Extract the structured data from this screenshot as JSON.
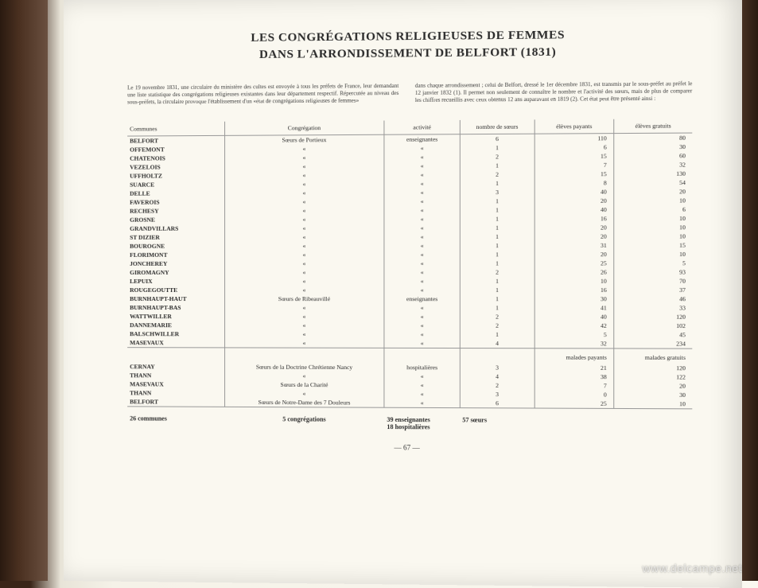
{
  "title": {
    "line1": "LES CONGRÉGATIONS RELIGIEUSES DE FEMMES",
    "line2": "DANS L'ARRONDISSEMENT DE BELFORT (1831)"
  },
  "intro": {
    "col1": "Le 19 novembre 1831, une circulaire du ministère des cultes est envoyée à tous les préfets de France, leur demandant une liste statistique des congrégations religieuses existantes dans leur département respectif. Répercutée au niveau des sous-préfets, la circulaire provoque l'établissement d'un «état de congrégations religieuses de femmes»",
    "col2": "dans chaque arrondissement ; celui de Belfort, dressé le 1er décembre 1831, est transmis par le sous-préfet au préfet le 12 janvier 1832 (1). Il permet non seulement de connaître le nombre et l'activité des sœurs, mais de plus de comparer les chiffres recueillis avec ceux obtenus 12 ans auparavant en 1819 (2). Cet état peut être présenté ainsi :"
  },
  "table": {
    "headers": {
      "communes": "Communes",
      "congregation": "Congrégation",
      "activite": "activité",
      "soeurs": "nombre de sœurs",
      "payants": "élèves payants",
      "gratuits": "élèves gratuits"
    },
    "section1": [
      {
        "commune": "BELFORT",
        "congregation": "Sœurs de Portieux",
        "activite": "enseignantes",
        "soeurs": "6",
        "payants": "110",
        "gratuits": "80"
      },
      {
        "commune": "OFFEMONT",
        "congregation": "«",
        "activite": "«",
        "soeurs": "1",
        "payants": "6",
        "gratuits": "30"
      },
      {
        "commune": "CHATENOIS",
        "congregation": "«",
        "activite": "«",
        "soeurs": "2",
        "payants": "15",
        "gratuits": "60"
      },
      {
        "commune": "VEZELOIS",
        "congregation": "«",
        "activite": "«",
        "soeurs": "1",
        "payants": "7",
        "gratuits": "32"
      },
      {
        "commune": "UFFHOLTZ",
        "congregation": "«",
        "activite": "«",
        "soeurs": "2",
        "payants": "15",
        "gratuits": "130"
      },
      {
        "commune": "SUARCE",
        "congregation": "«",
        "activite": "«",
        "soeurs": "1",
        "payants": "8",
        "gratuits": "54"
      },
      {
        "commune": "DELLE",
        "congregation": "«",
        "activite": "«",
        "soeurs": "3",
        "payants": "40",
        "gratuits": "20"
      },
      {
        "commune": "FAVEROIS",
        "congregation": "«",
        "activite": "«",
        "soeurs": "1",
        "payants": "20",
        "gratuits": "10"
      },
      {
        "commune": "RECHESY",
        "congregation": "«",
        "activite": "«",
        "soeurs": "1",
        "payants": "40",
        "gratuits": "6"
      },
      {
        "commune": "GROSNE",
        "congregation": "«",
        "activite": "«",
        "soeurs": "1",
        "payants": "16",
        "gratuits": "10"
      },
      {
        "commune": "GRANDVILLARS",
        "congregation": "«",
        "activite": "«",
        "soeurs": "1",
        "payants": "20",
        "gratuits": "10"
      },
      {
        "commune": "ST DIZIER",
        "congregation": "«",
        "activite": "«",
        "soeurs": "1",
        "payants": "20",
        "gratuits": "10"
      },
      {
        "commune": "BOUROGNE",
        "congregation": "«",
        "activite": "«",
        "soeurs": "1",
        "payants": "31",
        "gratuits": "15"
      },
      {
        "commune": "FLORIMONT",
        "congregation": "«",
        "activite": "«",
        "soeurs": "1",
        "payants": "20",
        "gratuits": "10"
      },
      {
        "commune": "JONCHEREY",
        "congregation": "«",
        "activite": "«",
        "soeurs": "1",
        "payants": "25",
        "gratuits": "5"
      },
      {
        "commune": "GIROMAGNY",
        "congregation": "«",
        "activite": "«",
        "soeurs": "2",
        "payants": "26",
        "gratuits": "93"
      },
      {
        "commune": "LEPUIX",
        "congregation": "«",
        "activite": "«",
        "soeurs": "1",
        "payants": "10",
        "gratuits": "70"
      },
      {
        "commune": "ROUGEGOUTTE",
        "congregation": "«",
        "activite": "«",
        "soeurs": "1",
        "payants": "16",
        "gratuits": "37"
      },
      {
        "commune": "BURNHAUPT-HAUT",
        "congregation": "Sœurs de Ribeauvillé",
        "activite": "enseignantes",
        "soeurs": "1",
        "payants": "30",
        "gratuits": "46"
      },
      {
        "commune": "BURNHAUPT-BAS",
        "congregation": "«",
        "activite": "«",
        "soeurs": "1",
        "payants": "41",
        "gratuits": "33"
      },
      {
        "commune": "WATTWILLER",
        "congregation": "«",
        "activite": "«",
        "soeurs": "2",
        "payants": "40",
        "gratuits": "120"
      },
      {
        "commune": "DANNEMARIE",
        "congregation": "«",
        "activite": "«",
        "soeurs": "2",
        "payants": "42",
        "gratuits": "102"
      },
      {
        "commune": "BALSCHWILLER",
        "congregation": "«",
        "activite": "«",
        "soeurs": "1",
        "payants": "5",
        "gratuits": "45"
      },
      {
        "commune": "MASEVAUX",
        "congregation": "«",
        "activite": "«",
        "soeurs": "4",
        "payants": "32",
        "gratuits": "234"
      }
    ],
    "section2_headers": {
      "payants": "malades payants",
      "gratuits": "malades gratuits"
    },
    "section2": [
      {
        "commune": "CERNAY",
        "congregation": "Sœurs de la Doctrine Chrétienne Nancy",
        "activite": "hospitalières",
        "soeurs": "3",
        "payants": "21",
        "gratuits": "120"
      },
      {
        "commune": "THANN",
        "congregation": "«",
        "activite": "«",
        "soeurs": "4",
        "payants": "38",
        "gratuits": "122"
      },
      {
        "commune": "MASEVAUX",
        "congregation": "Sœurs de la Charité",
        "activite": "«",
        "soeurs": "2",
        "payants": "7",
        "gratuits": "20"
      },
      {
        "commune": "THANN",
        "congregation": "«",
        "activite": "«",
        "soeurs": "3",
        "payants": "0",
        "gratuits": "30"
      },
      {
        "commune": "BELFORT",
        "congregation": "Sœurs de Notre-Dame des 7 Douleurs",
        "activite": "«",
        "soeurs": "6",
        "payants": "25",
        "gratuits": "10"
      }
    ],
    "summary": {
      "communes": "26 communes",
      "congregations": "5 congrégations",
      "activites_line1": "39 enseignantes",
      "activites_line2": "18 hospitalières",
      "soeurs": "57 sœurs"
    }
  },
  "page_number": "— 67 —",
  "watermark": "www.delcampe.net"
}
